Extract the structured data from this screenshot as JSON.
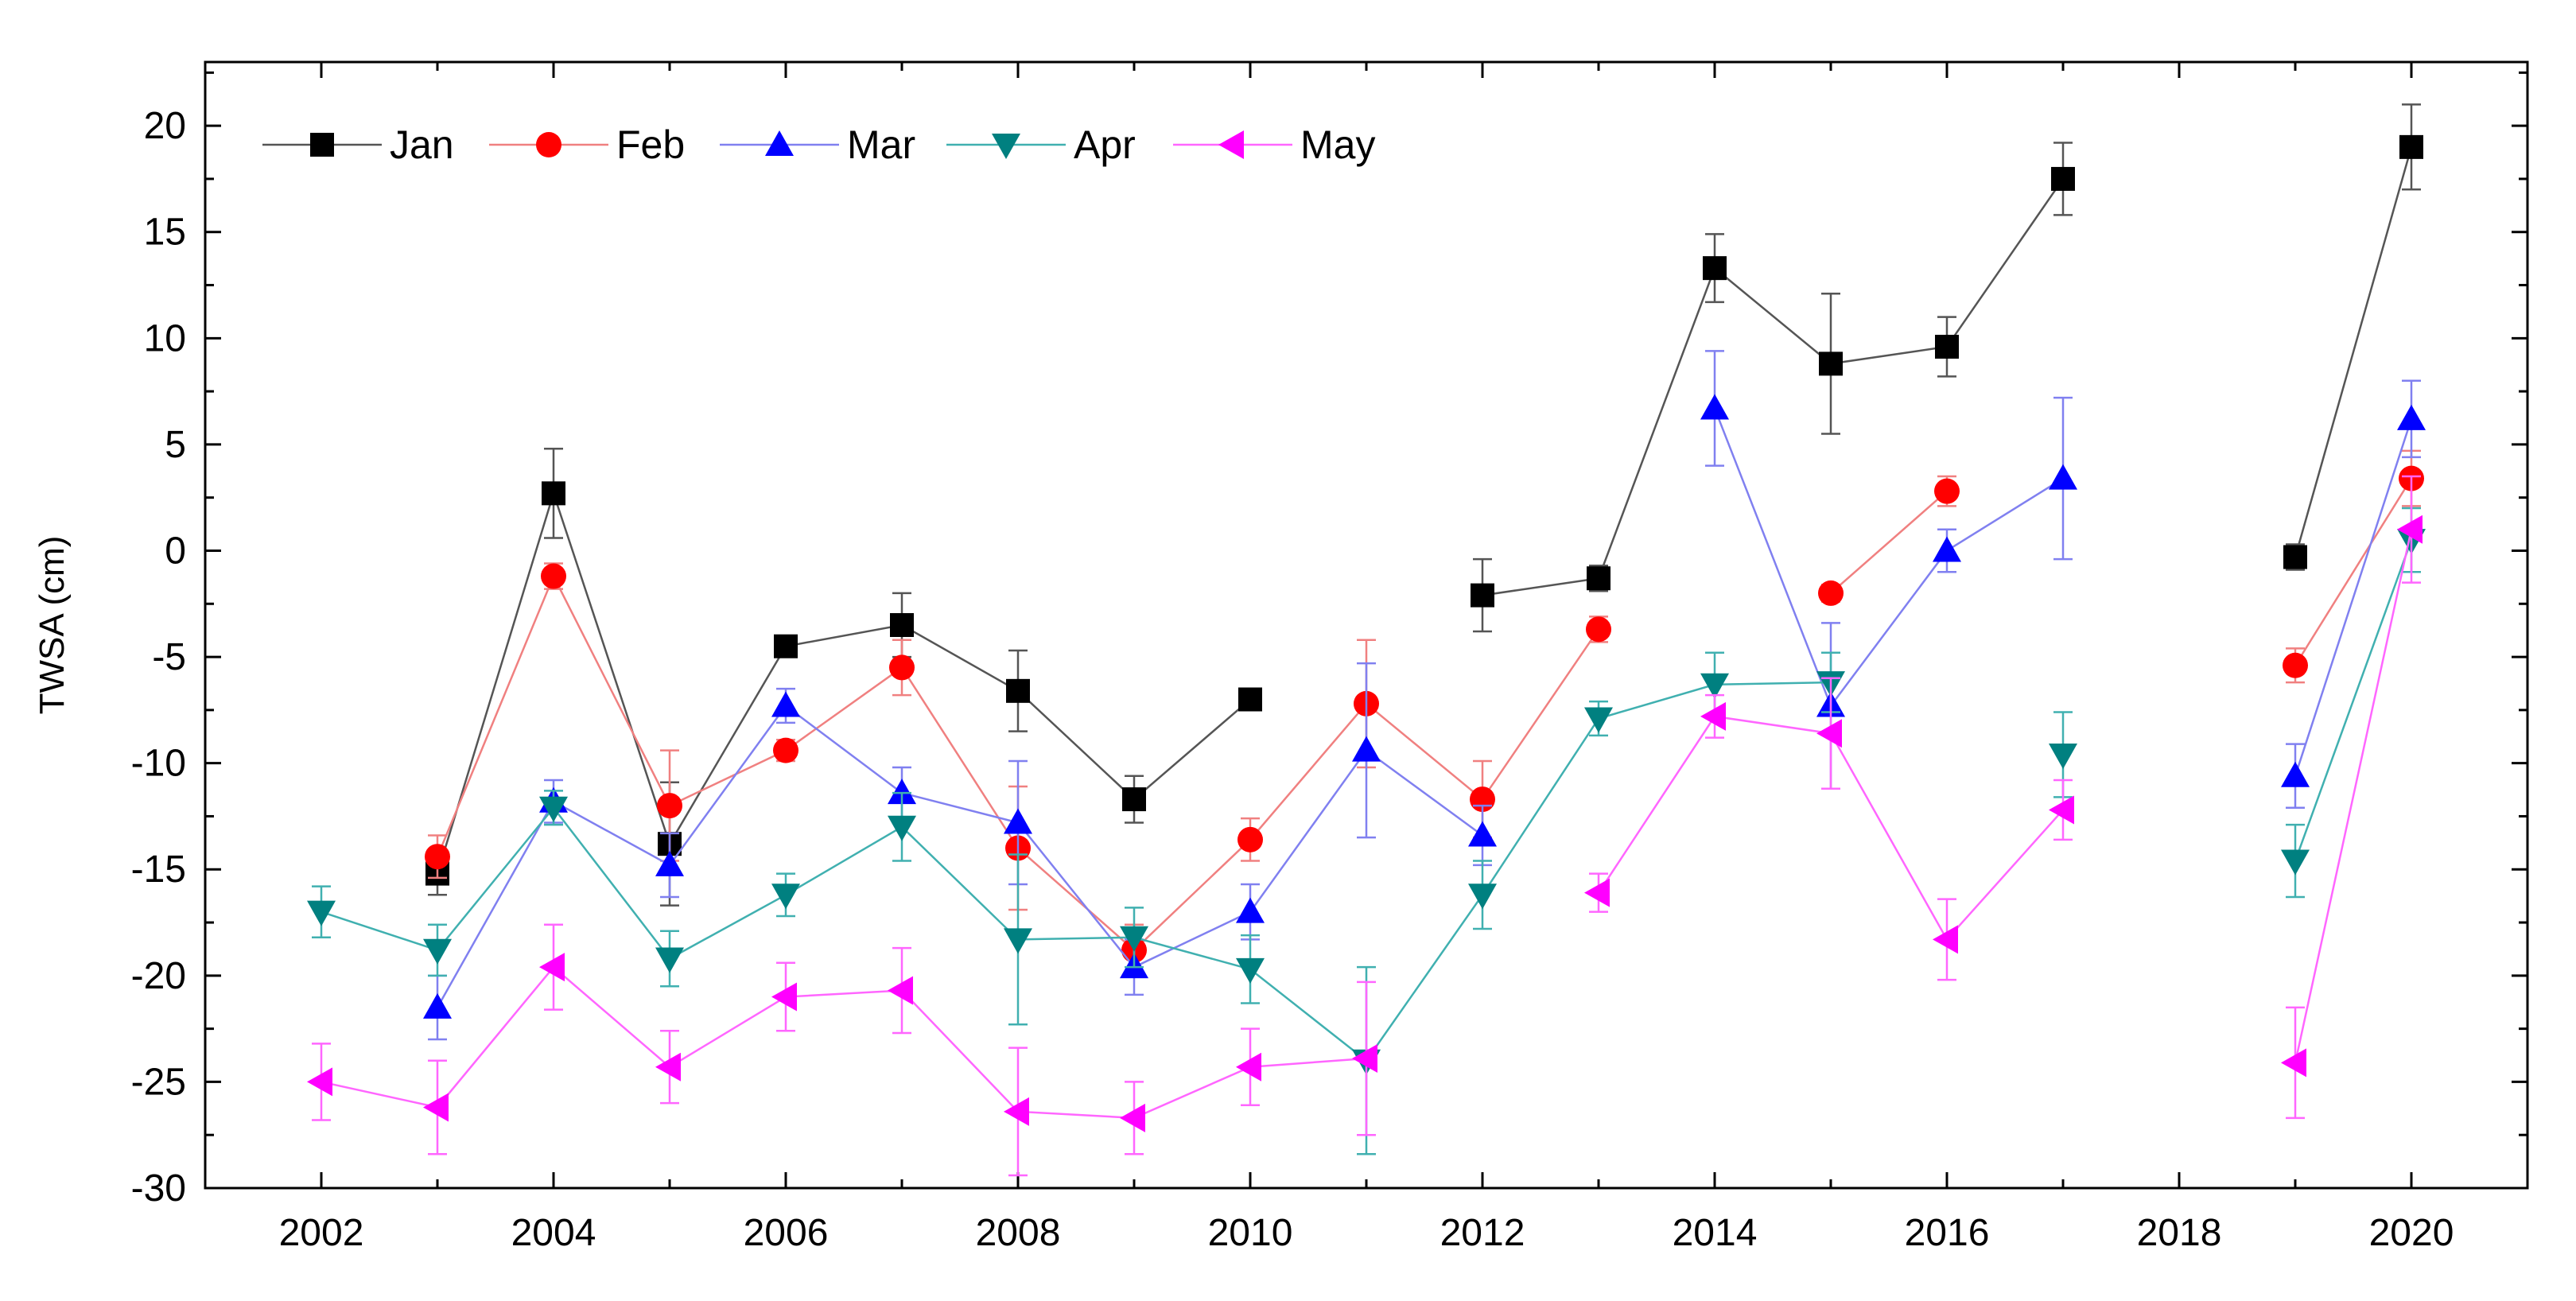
{
  "chart_data": {
    "type": "line",
    "title": "",
    "xlabel": "",
    "ylabel": "TWSA (cm)",
    "xlim": [
      2001,
      2021
    ],
    "ylim": [
      -30,
      23
    ],
    "x_ticks": [
      2002,
      2004,
      2006,
      2008,
      2010,
      2012,
      2014,
      2016,
      2018,
      2020
    ],
    "y_ticks": [
      -30,
      -25,
      -20,
      -15,
      -10,
      -5,
      0,
      5,
      10,
      15,
      20
    ],
    "x_tick_labels": [
      "2002",
      "2004",
      "2006",
      "2008",
      "2010",
      "2012",
      "2014",
      "2016",
      "2018",
      "2020"
    ],
    "y_tick_labels": [
      "-30",
      "-25",
      "-20",
      "-15",
      "-10",
      "-5",
      "0",
      "5",
      "10",
      "15",
      "20"
    ],
    "legend_position": "top-left",
    "series": [
      {
        "name": "Jan",
        "color": "#000000",
        "line_color": "#555555",
        "marker": "square",
        "points": [
          {
            "x": 2003,
            "y": -15.2,
            "err": 1.0
          },
          {
            "x": 2004,
            "y": 2.7,
            "err": 2.1
          },
          {
            "x": 2005,
            "y": -13.8,
            "err": 2.9
          },
          {
            "x": 2006,
            "y": -4.5,
            "err": 0.4
          },
          {
            "x": 2007,
            "y": -3.5,
            "err": 1.5
          },
          {
            "x": 2008,
            "y": -6.6,
            "err": 1.9
          },
          {
            "x": 2009,
            "y": -11.7,
            "err": 1.1
          },
          {
            "x": 2010,
            "y": -7.0,
            "err": 0.3
          },
          {
            "x": 2012,
            "y": -2.1,
            "err": 1.7
          },
          {
            "x": 2013,
            "y": -1.3,
            "err": 0.6
          },
          {
            "x": 2014,
            "y": 13.3,
            "err": 1.6
          },
          {
            "x": 2015,
            "y": 8.8,
            "err": 3.3
          },
          {
            "x": 2016,
            "y": 9.6,
            "err": 1.4
          },
          {
            "x": 2017,
            "y": 17.5,
            "err": 1.7
          },
          {
            "x": 2019,
            "y": -0.3,
            "err": 0.6
          },
          {
            "x": 2020,
            "y": 19.0,
            "err": 2.0
          }
        ],
        "segments": [
          [
            2003,
            2010
          ],
          [
            2012,
            2017
          ],
          [
            2019,
            2020
          ]
        ]
      },
      {
        "name": "Feb",
        "color": "#ff0000",
        "line_color": "#f08080",
        "marker": "circle",
        "points": [
          {
            "x": 2003,
            "y": -14.4,
            "err": 1.0
          },
          {
            "x": 2004,
            "y": -1.2,
            "err": 0.6
          },
          {
            "x": 2005,
            "y": -12.0,
            "err": 2.6
          },
          {
            "x": 2006,
            "y": -9.4,
            "err": 0.5
          },
          {
            "x": 2007,
            "y": -5.5,
            "err": 1.3
          },
          {
            "x": 2008,
            "y": -14.0,
            "err": 2.9
          },
          {
            "x": 2009,
            "y": -18.8,
            "err": 1.2
          },
          {
            "x": 2010,
            "y": -13.6,
            "err": 1.0
          },
          {
            "x": 2011,
            "y": -7.2,
            "err": 3.0
          },
          {
            "x": 2012,
            "y": -11.7,
            "err": 1.8
          },
          {
            "x": 2013,
            "y": -3.7,
            "err": 0.6
          },
          {
            "x": 2015,
            "y": -2.0,
            "err": 0.4
          },
          {
            "x": 2016,
            "y": 2.8,
            "err": 0.7
          },
          {
            "x": 2019,
            "y": -5.4,
            "err": 0.8
          },
          {
            "x": 2020,
            "y": 3.4,
            "err": 1.3
          }
        ],
        "segments": [
          [
            2003,
            2013
          ],
          [
            2015,
            2016
          ],
          [
            2019,
            2020
          ]
        ]
      },
      {
        "name": "Mar",
        "color": "#0000ff",
        "line_color": "#8080f0",
        "marker": "triangle-up",
        "points": [
          {
            "x": 2003,
            "y": -21.5,
            "err": 1.5
          },
          {
            "x": 2004,
            "y": -11.8,
            "err": 1.0
          },
          {
            "x": 2005,
            "y": -14.8,
            "err": 1.5
          },
          {
            "x": 2006,
            "y": -7.3,
            "err": 0.8
          },
          {
            "x": 2007,
            "y": -11.4,
            "err": 1.2
          },
          {
            "x": 2008,
            "y": -12.8,
            "err": 2.9
          },
          {
            "x": 2009,
            "y": -19.6,
            "err": 1.3
          },
          {
            "x": 2010,
            "y": -17.0,
            "err": 1.3
          },
          {
            "x": 2011,
            "y": -9.4,
            "err": 4.1
          },
          {
            "x": 2012,
            "y": -13.4,
            "err": 1.4
          },
          {
            "x": 2014,
            "y": 6.7,
            "err": 2.7
          },
          {
            "x": 2015,
            "y": -7.3,
            "err": 3.9
          },
          {
            "x": 2016,
            "y": 0.0,
            "err": 1.0
          },
          {
            "x": 2017,
            "y": 3.4,
            "err": 3.8
          },
          {
            "x": 2019,
            "y": -10.6,
            "err": 1.5
          },
          {
            "x": 2020,
            "y": 6.2,
            "err": 1.8
          }
        ],
        "segments": [
          [
            2003,
            2012
          ],
          [
            2014,
            2017
          ],
          [
            2019,
            2020
          ]
        ]
      },
      {
        "name": "Apr",
        "color": "#008080",
        "line_color": "#40b0b0",
        "marker": "triangle-down",
        "points": [
          {
            "x": 2002,
            "y": -17.0,
            "err": 1.2
          },
          {
            "x": 2003,
            "y": -18.8,
            "err": 1.2
          },
          {
            "x": 2004,
            "y": -12.1,
            "err": 0.8
          },
          {
            "x": 2005,
            "y": -19.2,
            "err": 1.3
          },
          {
            "x": 2006,
            "y": -16.2,
            "err": 1.0
          },
          {
            "x": 2007,
            "y": -13.0,
            "err": 1.6
          },
          {
            "x": 2008,
            "y": -18.3,
            "err": 4.0
          },
          {
            "x": 2009,
            "y": -18.2,
            "err": 1.4
          },
          {
            "x": 2010,
            "y": -19.7,
            "err": 1.6
          },
          {
            "x": 2011,
            "y": -24.0,
            "err": 4.4
          },
          {
            "x": 2012,
            "y": -16.2,
            "err": 1.6
          },
          {
            "x": 2013,
            "y": -7.9,
            "err": 0.8
          },
          {
            "x": 2014,
            "y": -6.3,
            "err": 1.5
          },
          {
            "x": 2015,
            "y": -6.2,
            "err": 1.4
          },
          {
            "x": 2017,
            "y": -9.6,
            "err": 2.0
          },
          {
            "x": 2019,
            "y": -14.6,
            "err": 1.7
          },
          {
            "x": 2020,
            "y": 0.5,
            "err": 1.5
          }
        ],
        "segments": [
          [
            2002,
            2015
          ],
          [
            2019,
            2020
          ]
        ]
      },
      {
        "name": "May",
        "color": "#ff00ff",
        "line_color": "#ff66ff",
        "marker": "triangle-left",
        "points": [
          {
            "x": 2002,
            "y": -25.0,
            "err": 1.8
          },
          {
            "x": 2003,
            "y": -26.2,
            "err": 2.2
          },
          {
            "x": 2004,
            "y": -19.6,
            "err": 2.0
          },
          {
            "x": 2005,
            "y": -24.3,
            "err": 1.7
          },
          {
            "x": 2006,
            "y": -21.0,
            "err": 1.6
          },
          {
            "x": 2007,
            "y": -20.7,
            "err": 2.0
          },
          {
            "x": 2008,
            "y": -26.4,
            "err": 3.0
          },
          {
            "x": 2009,
            "y": -26.7,
            "err": 1.7
          },
          {
            "x": 2010,
            "y": -24.3,
            "err": 1.8
          },
          {
            "x": 2011,
            "y": -23.9,
            "err": 3.6
          },
          {
            "x": 2013,
            "y": -16.1,
            "err": 0.9
          },
          {
            "x": 2014,
            "y": -7.8,
            "err": 1.0
          },
          {
            "x": 2015,
            "y": -8.6,
            "err": 2.6
          },
          {
            "x": 2016,
            "y": -18.3,
            "err": 1.9
          },
          {
            "x": 2017,
            "y": -12.2,
            "err": 1.4
          },
          {
            "x": 2019,
            "y": -24.1,
            "err": 2.6
          },
          {
            "x": 2020,
            "y": 1.0,
            "err": 2.5
          }
        ],
        "segments": [
          [
            2002,
            2011
          ],
          [
            2013,
            2017
          ],
          [
            2019,
            2020
          ]
        ]
      }
    ]
  }
}
